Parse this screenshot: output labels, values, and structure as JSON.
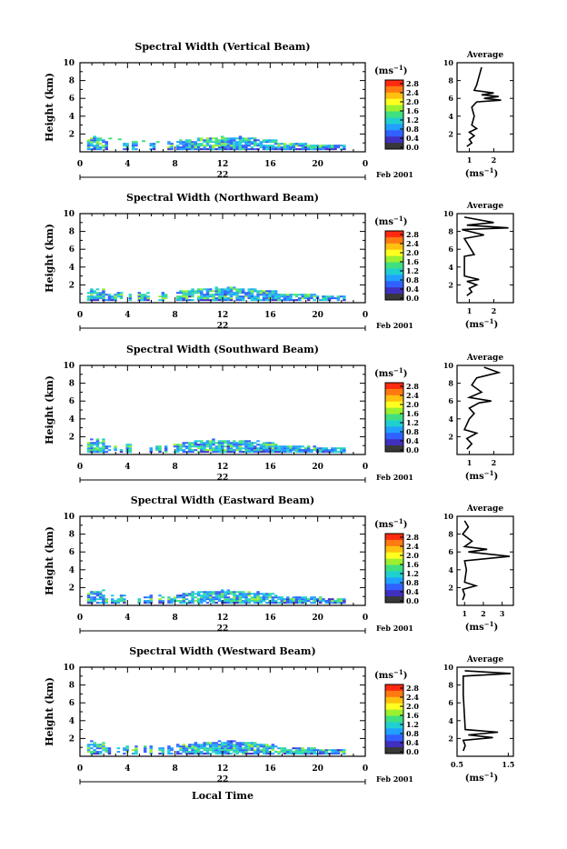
{
  "colorbar": {
    "unit": "(ms",
    "unit_exp": "−1",
    "ticks": [
      "2.8",
      "2.4",
      "2.0",
      "1.6",
      "1.2",
      "0.8",
      "0.4",
      "0.0"
    ],
    "colors": [
      "#ff2a10",
      "#ff7a10",
      "#ffc010",
      "#ffff20",
      "#9cf030",
      "#40e080",
      "#20d0d0",
      "#20a0ff",
      "#3060ff",
      "#4030c0",
      "#383838"
    ]
  },
  "x_axis": {
    "ticks": [
      "0",
      "4",
      "8",
      "12",
      "16",
      "20",
      "0"
    ],
    "day_label": "22",
    "date_label": "Feb 2001",
    "xlabel": "Local Time"
  },
  "y_ticks": [
    "10",
    "8",
    "6",
    "4",
    "2"
  ],
  "ylabel": "Height (km)",
  "avg_title": "Average",
  "avg_xlabel": "(ms",
  "avg_xlabel_exp": "−1",
  "chart_data": [
    {
      "type": "heatmap",
      "title": "Spectral Width (Vertical Beam)",
      "xlabel": "",
      "ylabel": "Height (km)",
      "xlim": [
        0,
        24
      ],
      "ylim": [
        0,
        10
      ],
      "cbar_range": [
        0,
        2.8
      ],
      "avg": {
        "xticks": [
          "1",
          "2"
        ],
        "xlim": [
          0.5,
          2.8
        ],
        "points": [
          [
            0.9,
            0.6
          ],
          [
            1.1,
            1.0
          ],
          [
            1.0,
            1.4
          ],
          [
            1.2,
            1.8
          ],
          [
            1.0,
            2.2
          ],
          [
            1.3,
            2.6
          ],
          [
            1.1,
            3.0
          ],
          [
            1.2,
            4.0
          ],
          [
            1.1,
            5.0
          ],
          [
            1.3,
            5.6
          ],
          [
            2.3,
            5.8
          ],
          [
            1.6,
            6.0
          ],
          [
            2.2,
            6.2
          ],
          [
            1.5,
            6.4
          ],
          [
            2.0,
            6.6
          ],
          [
            1.2,
            6.9
          ],
          [
            1.3,
            7.5
          ],
          [
            1.4,
            8.5
          ],
          [
            1.5,
            9.5
          ]
        ]
      }
    },
    {
      "type": "heatmap",
      "title": "Spectral Width (Northward Beam)",
      "xlabel": "",
      "ylabel": "Height (km)",
      "xlim": [
        0,
        24
      ],
      "ylim": [
        0,
        10
      ],
      "cbar_range": [
        0,
        2.8
      ],
      "avg": {
        "xticks": [
          "1",
          "2"
        ],
        "xlim": [
          0.5,
          2.8
        ],
        "points": [
          [
            0.9,
            0.8
          ],
          [
            1.1,
            1.2
          ],
          [
            1.0,
            1.6
          ],
          [
            1.3,
            2.0
          ],
          [
            0.9,
            2.4
          ],
          [
            1.4,
            2.6
          ],
          [
            0.8,
            3.0
          ],
          [
            0.8,
            5.2
          ],
          [
            1.2,
            5.4
          ],
          [
            0.8,
            7.2
          ],
          [
            1.6,
            7.6
          ],
          [
            0.7,
            8.2
          ],
          [
            2.6,
            8.4
          ],
          [
            0.9,
            8.7
          ],
          [
            2.0,
            9.0
          ],
          [
            0.8,
            9.6
          ]
        ]
      }
    },
    {
      "type": "heatmap",
      "title": "Spectral Width (Southward Beam)",
      "xlabel": "",
      "ylabel": "Height (km)",
      "xlim": [
        0,
        24
      ],
      "ylim": [
        0,
        10
      ],
      "cbar_range": [
        0,
        2.8
      ],
      "avg": {
        "xticks": [
          "1",
          "2"
        ],
        "xlim": [
          0.5,
          2.8
        ],
        "points": [
          [
            0.9,
            0.6
          ],
          [
            1.1,
            1.2
          ],
          [
            0.9,
            1.8
          ],
          [
            1.3,
            2.4
          ],
          [
            0.8,
            2.8
          ],
          [
            1.0,
            4.0
          ],
          [
            1.2,
            4.6
          ],
          [
            1.0,
            5.2
          ],
          [
            1.4,
            5.8
          ],
          [
            1.9,
            6.0
          ],
          [
            1.0,
            6.4
          ],
          [
            1.5,
            7.0
          ],
          [
            1.1,
            7.8
          ],
          [
            1.3,
            8.6
          ],
          [
            2.2,
            9.2
          ],
          [
            1.6,
            9.8
          ]
        ]
      }
    },
    {
      "type": "heatmap",
      "title": "Spectral Width (Eastward Beam)",
      "xlabel": "",
      "ylabel": "Height (km)",
      "xlim": [
        0,
        24
      ],
      "ylim": [
        0,
        10
      ],
      "cbar_range": [
        0,
        2.8
      ],
      "avg": {
        "xticks": [
          "1",
          "2",
          "3"
        ],
        "xlim": [
          0.6,
          3.6
        ],
        "points": [
          [
            0.9,
            0.6
          ],
          [
            1.0,
            1.2
          ],
          [
            0.9,
            1.8
          ],
          [
            1.6,
            2.2
          ],
          [
            1.0,
            2.6
          ],
          [
            1.1,
            4.0
          ],
          [
            1.0,
            5.0
          ],
          [
            3.4,
            5.5
          ],
          [
            1.2,
            6.0
          ],
          [
            2.2,
            6.3
          ],
          [
            1.0,
            6.6
          ],
          [
            1.4,
            7.2
          ],
          [
            0.9,
            8.0
          ],
          [
            1.2,
            8.8
          ],
          [
            1.0,
            9.5
          ]
        ]
      }
    },
    {
      "type": "heatmap",
      "title": "Spectral Width (Westward Beam)",
      "xlabel": "Local Time",
      "ylabel": "Height (km)",
      "xlim": [
        0,
        24
      ],
      "ylim": [
        0,
        10
      ],
      "cbar_range": [
        0,
        2.8
      ],
      "avg": {
        "xticks": [
          "0.5",
          "1.5"
        ],
        "xlim": [
          0.5,
          1.6
        ],
        "points": [
          [
            0.62,
            0.6
          ],
          [
            0.66,
            1.2
          ],
          [
            0.62,
            1.8
          ],
          [
            1.2,
            2.1
          ],
          [
            0.72,
            2.4
          ],
          [
            1.3,
            2.7
          ],
          [
            0.66,
            3.0
          ],
          [
            0.64,
            5.0
          ],
          [
            0.62,
            7.0
          ],
          [
            0.62,
            9.0
          ],
          [
            1.55,
            9.3
          ],
          [
            0.65,
            9.6
          ]
        ]
      }
    }
  ]
}
